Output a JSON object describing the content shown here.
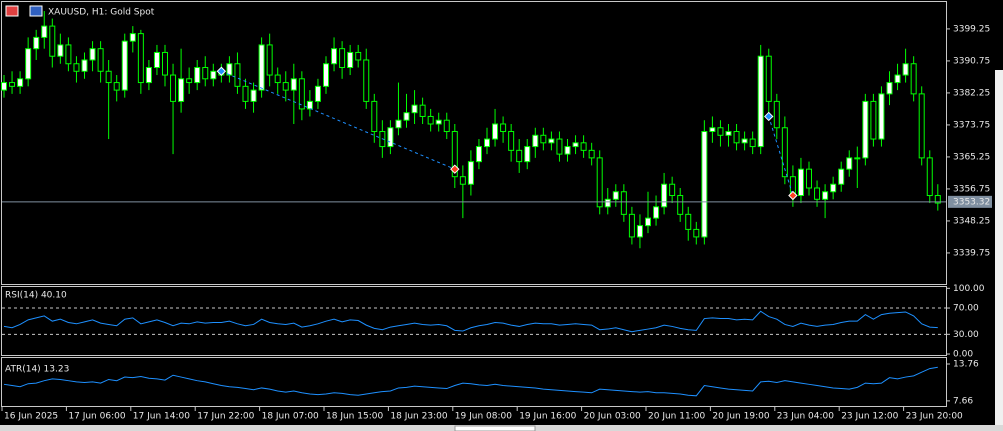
{
  "chart_data": [
    {
      "type": "candlestick",
      "title": "XAUUSD, H1:  Gold Spot",
      "categories": [
        "16 Jun 2025",
        null,
        null,
        null,
        null,
        null,
        null,
        null,
        "17 Jun 06:00",
        null,
        null,
        null,
        null,
        null,
        null,
        null,
        "17 Jun 14:00",
        null,
        null,
        null,
        null,
        null,
        null,
        null,
        "17 Jun 22:00",
        null,
        null,
        null,
        null,
        null,
        null,
        null,
        "18 Jun 07:00",
        null,
        null,
        null,
        null,
        null,
        null,
        null,
        "18 Jun 15:00",
        null,
        null,
        null,
        null,
        null,
        null,
        null,
        "18 Jun 23:00",
        null,
        null,
        null,
        null,
        null,
        null,
        null,
        "19 Jun 08:00",
        null,
        null,
        null,
        null,
        null,
        null,
        null,
        "19 Jun 16:00",
        null,
        null,
        null,
        null,
        null,
        null,
        null,
        "20 Jun 03:00",
        null,
        null,
        null,
        null,
        null,
        null,
        null,
        "20 Jun 11:00",
        null,
        null,
        null,
        null,
        null,
        null,
        null,
        "20 Jun 19:00",
        null,
        null,
        null,
        null,
        null,
        null,
        null,
        "23 Jun 04:00",
        null,
        null,
        null,
        null,
        null,
        null,
        null,
        "23 Jun 12:00",
        null,
        null,
        null,
        null,
        null,
        null,
        null,
        "23 Jun 20:00",
        null,
        null,
        null,
        null
      ],
      "open": [
        3383,
        3385,
        3384,
        3386,
        3394,
        3397,
        3400,
        3392,
        3395,
        3390,
        3388,
        3391,
        3394,
        3388,
        3385,
        3383,
        3396,
        3398,
        3385,
        3389,
        3393,
        3387,
        3380,
        3386,
        3385,
        3389,
        3386,
        3388,
        3387,
        3390,
        3384,
        3380,
        3383,
        3395,
        3387,
        3385,
        3383,
        3386,
        3378,
        3380,
        3384,
        3390,
        3394,
        3389,
        3393,
        3391,
        3380,
        3372,
        3368,
        3373,
        3375,
        3377,
        3379,
        3376,
        3374,
        3375,
        3372,
        3360,
        3358,
        3364,
        3368,
        3370,
        3374,
        3372,
        3367,
        3364,
        3368,
        3371,
        3369,
        3370,
        3366,
        3368,
        3369,
        3367,
        3365,
        3352,
        3354,
        3356,
        3350,
        3344,
        3347,
        3349,
        3352,
        3358,
        3355,
        3350,
        3346,
        3344,
        3372,
        3373,
        3371,
        3372,
        3369,
        3370,
        3368,
        3392,
        3380,
        3373,
        3360,
        3355,
        3362,
        3357,
        3354,
        3356,
        3358,
        3362,
        3365,
        3365,
        3380,
        3370,
        3382,
        3385,
        3387,
        3390,
        3382,
        3365,
        3355
      ],
      "high": [
        3387,
        3388,
        3388,
        3397,
        3399,
        3404,
        3402,
        3398,
        3397,
        3392,
        3393,
        3396,
        3396,
        3391,
        3387,
        3398,
        3400,
        3399,
        3391,
        3395,
        3395,
        3390,
        3394,
        3389,
        3391,
        3392,
        3390,
        3390,
        3392,
        3393,
        3386,
        3385,
        3397,
        3398,
        3389,
        3388,
        3390,
        3388,
        3383,
        3386,
        3392,
        3397,
        3396,
        3395,
        3395,
        3394,
        3382,
        3375,
        3375,
        3385,
        3382,
        3383,
        3381,
        3378,
        3377,
        3377,
        3374,
        3363,
        3367,
        3370,
        3373,
        3378,
        3376,
        3374,
        3370,
        3370,
        3373,
        3373,
        3372,
        3372,
        3370,
        3371,
        3371,
        3369,
        3367,
        3357,
        3358,
        3358,
        3352,
        3350,
        3356,
        3355,
        3361,
        3360,
        3357,
        3352,
        3348,
        3375,
        3376,
        3375,
        3374,
        3374,
        3372,
        3372,
        3395,
        3394,
        3382,
        3376,
        3363,
        3365,
        3364,
        3359,
        3358,
        3360,
        3364,
        3367,
        3368,
        3382,
        3382,
        3384,
        3388,
        3390,
        3394,
        3392,
        3384,
        3367,
        3358
      ],
      "low": [
        3381,
        3382,
        3382,
        3384,
        3391,
        3394,
        3389,
        3390,
        3388,
        3385,
        3386,
        3388,
        3385,
        3370,
        3380,
        3381,
        3393,
        3382,
        3383,
        3387,
        3384,
        3366,
        3377,
        3382,
        3383,
        3384,
        3384,
        3385,
        3385,
        3382,
        3378,
        3377,
        3381,
        3384,
        3382,
        3380,
        3374,
        3375,
        3376,
        3378,
        3382,
        3388,
        3386,
        3387,
        3389,
        3378,
        3369,
        3365,
        3366,
        3371,
        3373,
        3374,
        3374,
        3372,
        3372,
        3370,
        3357,
        3349,
        3355,
        3362,
        3366,
        3368,
        3369,
        3364,
        3361,
        3362,
        3365,
        3367,
        3367,
        3364,
        3364,
        3366,
        3365,
        3363,
        3350,
        3350,
        3352,
        3348,
        3342,
        3341,
        3345,
        3347,
        3350,
        3353,
        3348,
        3343,
        3342,
        3342,
        3369,
        3368,
        3368,
        3367,
        3367,
        3366,
        3366,
        3377,
        3370,
        3358,
        3352,
        3353,
        3355,
        3352,
        3349,
        3354,
        3356,
        3360,
        3357,
        3363,
        3368,
        3368,
        3379,
        3383,
        3385,
        3380,
        3363,
        3353,
        3351
      ],
      "close": [
        3385,
        3384,
        3386,
        3394,
        3397,
        3400,
        3392,
        3395,
        3390,
        3388,
        3391,
        3394,
        3388,
        3385,
        3383,
        3396,
        3398,
        3385,
        3389,
        3393,
        3387,
        3380,
        3386,
        3385,
        3389,
        3386,
        3388,
        3387,
        3390,
        3384,
        3380,
        3383,
        3395,
        3387,
        3385,
        3383,
        3386,
        3378,
        3380,
        3384,
        3390,
        3394,
        3389,
        3393,
        3391,
        3380,
        3372,
        3368,
        3373,
        3375,
        3377,
        3379,
        3376,
        3374,
        3375,
        3372,
        3360,
        3358,
        3364,
        3368,
        3370,
        3374,
        3372,
        3367,
        3364,
        3368,
        3371,
        3369,
        3370,
        3366,
        3368,
        3369,
        3367,
        3365,
        3352,
        3354,
        3356,
        3350,
        3344,
        3347,
        3349,
        3352,
        3358,
        3355,
        3350,
        3346,
        3344,
        3372,
        3373,
        3371,
        3372,
        3369,
        3370,
        3368,
        3392,
        3380,
        3373,
        3360,
        3355,
        3362,
        3357,
        3354,
        3356,
        3358,
        3362,
        3365,
        3365,
        3380,
        3370,
        3382,
        3385,
        3387,
        3390,
        3382,
        3365,
        3355,
        3353
      ],
      "up_color": "#ffffff",
      "down_color": "#000000",
      "wick_color": "#00ff00",
      "ylim": [
        3331.5,
        3406.4
      ],
      "yticks": [
        3399.25,
        3390.75,
        3382.25,
        3373.75,
        3365.25,
        3356.75,
        3348.25,
        3339.75
      ],
      "last_price": 3353.32,
      "trades": [
        {
          "entry": 3388,
          "exit": 3362
        },
        {
          "entry": 3376,
          "exit": 3355
        }
      ]
    },
    {
      "type": "line",
      "title": "RSI(14) 40.10",
      "color": "#1e90ff",
      "values": [
        42,
        40,
        45,
        52,
        55,
        58,
        50,
        53,
        48,
        46,
        49,
        52,
        47,
        45,
        43,
        53,
        55,
        46,
        49,
        52,
        48,
        43,
        47,
        46,
        49,
        47,
        48,
        48,
        50,
        46,
        43,
        45,
        53,
        48,
        46,
        45,
        47,
        41,
        43,
        46,
        50,
        53,
        49,
        52,
        51,
        44,
        39,
        37,
        41,
        43,
        45,
        47,
        45,
        44,
        45,
        43,
        36,
        35,
        40,
        43,
        45,
        48,
        47,
        44,
        42,
        45,
        47,
        46,
        46,
        44,
        45,
        46,
        45,
        44,
        37,
        38,
        40,
        37,
        34,
        36,
        38,
        40,
        44,
        42,
        39,
        37,
        36,
        54,
        55,
        54,
        54,
        52,
        53,
        52,
        65,
        57,
        53,
        45,
        42,
        47,
        44,
        42,
        44,
        45,
        48,
        50,
        50,
        60,
        53,
        60,
        62,
        63,
        64,
        58,
        46,
        41,
        40.1
      ],
      "ylim": [
        -3,
        102
      ],
      "yticks": [
        {
          "value": 100,
          "label": "100.00"
        },
        {
          "value": 70,
          "label": "70.00"
        },
        {
          "value": 30,
          "label": "30.00"
        },
        {
          "value": 0,
          "label": "0.00"
        }
      ]
    },
    {
      "type": "line",
      "title": "ATR(14) 13.23",
      "color": "#1e90ff",
      "values": [
        10.4,
        10.2,
        10.0,
        10.5,
        10.6,
        11.0,
        11.3,
        11.2,
        11.0,
        10.8,
        10.7,
        10.8,
        10.6,
        11.2,
        11.0,
        11.6,
        11.5,
        11.7,
        11.4,
        11.3,
        11.1,
        11.9,
        11.6,
        11.3,
        11.0,
        10.8,
        10.5,
        10.2,
        10.0,
        9.9,
        9.7,
        9.5,
        9.8,
        9.6,
        9.3,
        9.1,
        9.3,
        9.0,
        8.8,
        8.7,
        8.8,
        9.0,
        8.9,
        8.7,
        8.6,
        8.8,
        9.0,
        9.2,
        9.3,
        9.8,
        9.9,
        10.1,
        10.0,
        9.9,
        9.8,
        9.7,
        10.2,
        10.6,
        10.5,
        10.3,
        10.2,
        10.4,
        10.2,
        10.1,
        10.0,
        9.9,
        9.8,
        9.6,
        9.5,
        9.4,
        9.3,
        9.2,
        9.1,
        9.0,
        9.6,
        9.5,
        9.4,
        9.3,
        9.2,
        9.1,
        9.2,
        9.0,
        9.0,
        8.9,
        8.8,
        8.6,
        8.5,
        10.2,
        10.0,
        9.8,
        9.6,
        9.5,
        9.4,
        9.3,
        10.8,
        10.9,
        10.7,
        11.0,
        10.8,
        10.6,
        10.4,
        10.2,
        10.0,
        9.8,
        9.7,
        9.6,
        9.9,
        10.6,
        10.5,
        10.6,
        11.5,
        11.3,
        11.6,
        11.8,
        12.4,
        13.0,
        13.23
      ],
      "ylim": [
        6.65,
        14.75
      ],
      "yticks": [
        13.76,
        7.66
      ]
    }
  ]
}
